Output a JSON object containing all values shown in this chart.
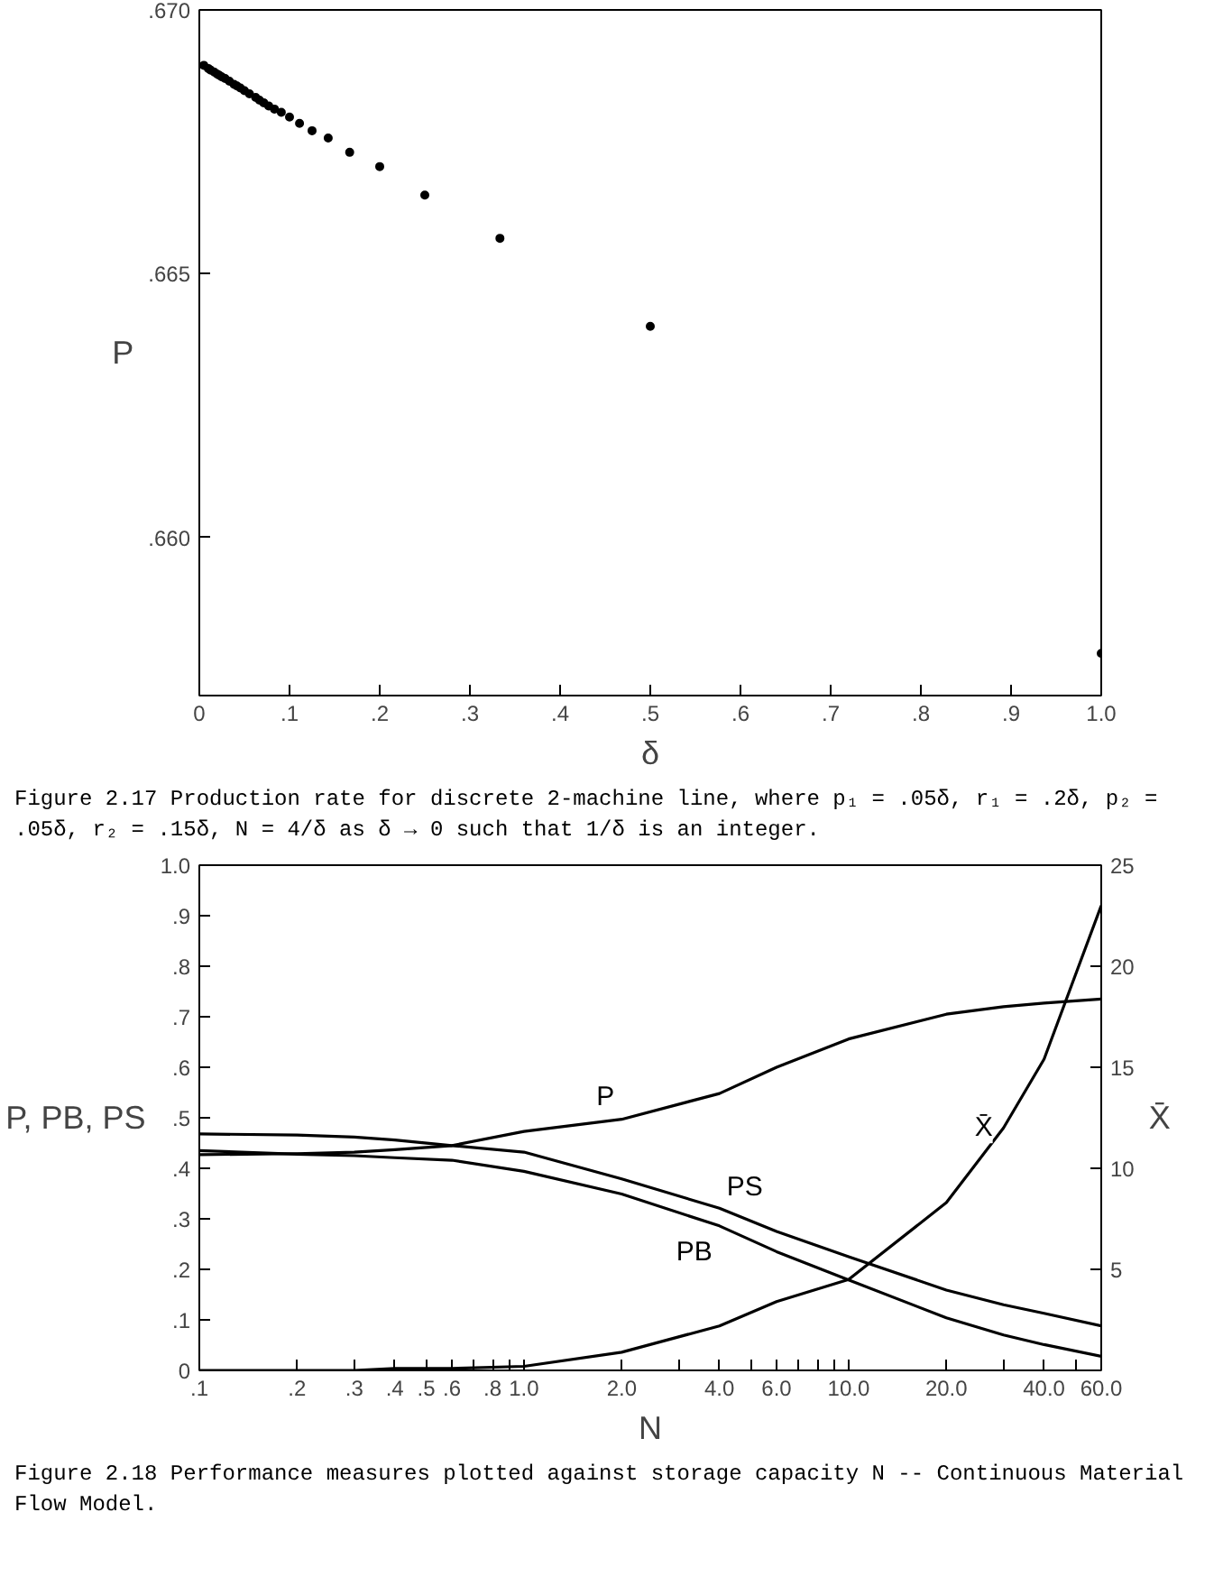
{
  "chart_data": [
    {
      "type": "scatter",
      "xlabel": "δ",
      "ylabel": "P",
      "marker": "circle",
      "grid": false,
      "xlim": [
        0,
        1.0
      ],
      "ylim": [
        0.657,
        0.67
      ],
      "xticks": [
        {
          "value": 0,
          "label": "0"
        },
        {
          "value": 0.1,
          "label": ".1"
        },
        {
          "value": 0.2,
          "label": ".2"
        },
        {
          "value": 0.3,
          "label": ".3"
        },
        {
          "value": 0.4,
          "label": ".4"
        },
        {
          "value": 0.5,
          "label": ".5"
        },
        {
          "value": 0.6,
          "label": ".6"
        },
        {
          "value": 0.7,
          "label": ".7"
        },
        {
          "value": 0.8,
          "label": ".8"
        },
        {
          "value": 0.9,
          "label": ".9"
        },
        {
          "value": 1.0,
          "label": "1.0"
        }
      ],
      "yticks": [
        {
          "value": 0.66,
          "label": ".660"
        },
        {
          "value": 0.665,
          "label": ".665"
        },
        {
          "value": 0.67,
          "label": ".670"
        }
      ],
      "series": [
        {
          "color": "#000000",
          "x": [
            1.0,
            0.5,
            0.3333,
            0.25,
            0.2,
            0.1667,
            0.1429,
            0.125,
            0.1111,
            0.1,
            0.0909,
            0.0833,
            0.0769,
            0.0714,
            0.0667,
            0.0625,
            0.0556,
            0.05,
            0.0455,
            0.0417,
            0.0385,
            0.0333,
            0.0286,
            0.025,
            0.0222,
            0.02,
            0.0167,
            0.0125,
            0.01,
            0.005
          ],
          "values": [
            0.6578,
            0.664,
            0.66567,
            0.66649,
            0.66703,
            0.6673,
            0.66757,
            0.66771,
            0.66785,
            0.66797,
            0.66806,
            0.66812,
            0.66818,
            0.66824,
            0.66829,
            0.66834,
            0.66841,
            0.66847,
            0.66852,
            0.66856,
            0.66859,
            0.66865,
            0.6687,
            0.66873,
            0.66876,
            0.66878,
            0.66882,
            0.66886,
            0.66889,
            0.66895
          ]
        }
      ],
      "annotations": [
        "Figure 2.17    Production rate for discrete 2-machine line, where p₁ = .05δ, r₁ = .2δ, p₂ = .05δ, r₂ = .15δ, N = 4/δ as δ → 0 such that 1/δ is an integer."
      ]
    },
    {
      "type": "line",
      "xlabel": "N",
      "ylabel": "P, PB, PS",
      "y2label": "X̄",
      "log": "x",
      "grid": false,
      "line_style": "solid",
      "xlim": [
        0.1,
        60.0
      ],
      "ylim": [
        0,
        1.0
      ],
      "y2lim": [
        0,
        25
      ],
      "xticks": [
        {
          "value": 0.1,
          "label": ".1"
        },
        {
          "value": 0.2,
          "label": ".2"
        },
        {
          "value": 0.3,
          "label": ".3"
        },
        {
          "value": 0.4,
          "label": ".4"
        },
        {
          "value": 0.5,
          "label": ".5"
        },
        {
          "value": 0.6,
          "label": ".6"
        },
        {
          "value": 0.7,
          "label": null
        },
        {
          "value": 0.8,
          "label": ".8"
        },
        {
          "value": 0.9,
          "label": null
        },
        {
          "value": 1.0,
          "label": "1.0"
        },
        {
          "value": 2.0,
          "label": "2.0"
        },
        {
          "value": 3.0,
          "label": null
        },
        {
          "value": 4.0,
          "label": "4.0"
        },
        {
          "value": 5.0,
          "label": null
        },
        {
          "value": 6.0,
          "label": "6.0"
        },
        {
          "value": 7.0,
          "label": null
        },
        {
          "value": 8.0,
          "label": null
        },
        {
          "value": 9.0,
          "label": null
        },
        {
          "value": 10.0,
          "label": "10.0"
        },
        {
          "value": 20.0,
          "label": "20.0"
        },
        {
          "value": 30.0,
          "label": null
        },
        {
          "value": 40.0,
          "label": "40.0"
        },
        {
          "value": 50.0,
          "label": null
        },
        {
          "value": 60.0,
          "label": "60.0"
        }
      ],
      "yticks": [
        0,
        {
          "value": 0.1,
          "label": ".1"
        },
        {
          "value": 0.2,
          "label": ".2"
        },
        {
          "value": 0.3,
          "label": ".3"
        },
        {
          "value": 0.4,
          "label": ".4"
        },
        {
          "value": 0.5,
          "label": ".5"
        },
        {
          "value": 0.6,
          "label": ".6"
        },
        {
          "value": 0.7,
          "label": ".7"
        },
        {
          "value": 0.8,
          "label": ".8"
        },
        {
          "value": 0.9,
          "label": ".9"
        },
        {
          "value": 1.0,
          "label": "1.0"
        }
      ],
      "y2ticks": [
        5,
        10,
        15,
        20,
        25
      ],
      "x": [
        0.1,
        0.2,
        0.3,
        0.4,
        0.6,
        1.0,
        2.0,
        4.0,
        6.0,
        10.0,
        20.0,
        30.0,
        40.0,
        60.0
      ],
      "series": [
        {
          "name": "P",
          "color": "#000000",
          "values": [
            0.427,
            0.429,
            0.432,
            0.437,
            0.445,
            0.473,
            0.497,
            0.548,
            0.6,
            0.656,
            0.705,
            0.72,
            0.727,
            0.735
          ]
        },
        {
          "name": "PS",
          "color": "#000000",
          "values": [
            0.468,
            0.466,
            0.462,
            0.456,
            0.445,
            0.432,
            0.379,
            0.321,
            0.275,
            0.225,
            0.159,
            0.13,
            0.113,
            0.088
          ]
        },
        {
          "name": "PB",
          "color": "#000000",
          "values": [
            0.435,
            0.428,
            0.425,
            0.421,
            0.416,
            0.394,
            0.349,
            0.286,
            0.235,
            0.179,
            0.104,
            0.07,
            0.051,
            0.028
          ]
        },
        {
          "name": "X̄",
          "color": "#000000",
          "axis": "y2",
          "values": [
            0.0,
            0.0,
            0.0,
            0.1,
            0.1,
            0.2,
            0.9,
            2.2,
            3.4,
            4.5,
            8.3,
            12.0,
            15.4,
            23.0
          ]
        }
      ],
      "annotations": [
        "Figure 2.18    Performance measures plotted against storage capacity N -- Continuous Material Flow Model."
      ]
    }
  ]
}
